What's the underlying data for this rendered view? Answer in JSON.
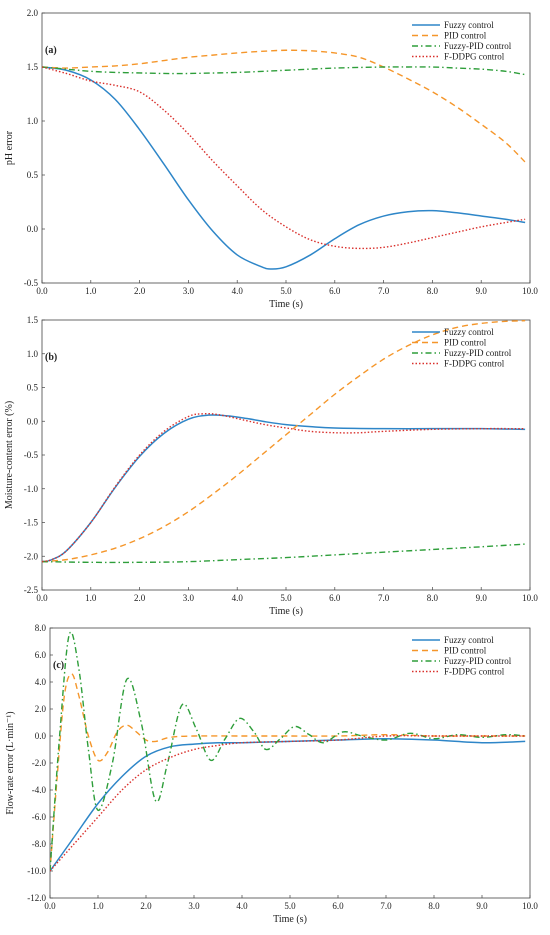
{
  "colors": {
    "fuzzy": "#2E86C8",
    "pid": "#F5962A",
    "fuzzy_pid": "#2E9E3A",
    "fddpg": "#D9302C"
  },
  "chart_data": [
    {
      "type": "line",
      "panel_label": "(a)",
      "xlabel": "Time (s)",
      "ylabel": "pH error",
      "xlim": [
        0,
        10
      ],
      "ylim": [
        -0.5,
        2.0
      ],
      "xticks": [
        "0.0",
        "1.0",
        "2.0",
        "3.0",
        "4.0",
        "5.0",
        "6.0",
        "7.0",
        "8.0",
        "9.0",
        "10.0"
      ],
      "yticks": [
        "-0.5",
        "0.0",
        "0.5",
        "1.0",
        "1.5",
        "2.0"
      ],
      "legend_position": "top-right",
      "series": [
        {
          "name": "Fuzzy control",
          "style": "solid",
          "color_key": "fuzzy",
          "x": [
            0,
            0.5,
            1,
            1.5,
            2,
            2.5,
            3,
            3.5,
            4,
            4.5,
            4.7,
            5,
            5.5,
            6,
            6.5,
            7,
            7.5,
            8,
            8.5,
            9,
            9.5,
            9.9
          ],
          "y": [
            1.5,
            1.47,
            1.38,
            1.2,
            0.92,
            0.6,
            0.27,
            -0.02,
            -0.24,
            -0.35,
            -0.37,
            -0.35,
            -0.24,
            -0.09,
            0.04,
            0.12,
            0.16,
            0.17,
            0.15,
            0.12,
            0.09,
            0.06
          ]
        },
        {
          "name": "PID control",
          "style": "dashed",
          "color_key": "pid",
          "x": [
            0,
            0.5,
            1,
            1.5,
            2,
            2.5,
            3,
            3.5,
            4,
            4.5,
            5,
            5.5,
            6,
            6.5,
            7,
            7.5,
            8,
            8.5,
            9,
            9.5,
            9.9
          ],
          "y": [
            1.5,
            1.49,
            1.5,
            1.51,
            1.53,
            1.56,
            1.59,
            1.61,
            1.63,
            1.645,
            1.655,
            1.65,
            1.63,
            1.59,
            1.5,
            1.39,
            1.27,
            1.13,
            0.97,
            0.8,
            0.62
          ]
        },
        {
          "name": "Fuzzy-PID control",
          "style": "dashdot",
          "color_key": "fuzzy_pid",
          "x": [
            0,
            0.5,
            1,
            1.5,
            2,
            2.5,
            3,
            4,
            5,
            6,
            7,
            7.5,
            8,
            8.5,
            9,
            9.5,
            9.9
          ],
          "y": [
            1.5,
            1.48,
            1.46,
            1.45,
            1.445,
            1.44,
            1.44,
            1.45,
            1.47,
            1.49,
            1.5,
            1.5,
            1.5,
            1.49,
            1.48,
            1.46,
            1.43
          ]
        },
        {
          "name": "F-DDPG control",
          "style": "dotted",
          "color_key": "fddpg",
          "x": [
            0,
            0.5,
            1,
            1.5,
            2,
            2.5,
            3,
            3.5,
            4,
            4.5,
            5,
            5.5,
            6,
            6.5,
            7,
            7.5,
            8,
            8.5,
            9,
            9.5,
            9.9
          ],
          "y": [
            1.5,
            1.44,
            1.37,
            1.33,
            1.27,
            1.1,
            0.88,
            0.63,
            0.4,
            0.18,
            0.02,
            -0.1,
            -0.16,
            -0.18,
            -0.17,
            -0.13,
            -0.08,
            -0.03,
            0.02,
            0.06,
            0.09
          ]
        }
      ]
    },
    {
      "type": "line",
      "panel_label": "(b)",
      "xlabel": "Time (s)",
      "ylabel": "Moisture-content error (%)",
      "xlim": [
        0,
        10
      ],
      "ylim": [
        -2.5,
        1.5
      ],
      "xticks": [
        "0.0",
        "1.0",
        "2.0",
        "3.0",
        "4.0",
        "5.0",
        "6.0",
        "7.0",
        "8.0",
        "9.0",
        "10.0"
      ],
      "yticks": [
        "-2.5",
        "-2.0",
        "-1.5",
        "-1.0",
        "-0.5",
        "0.0",
        "0.5",
        "1.0",
        "1.5"
      ],
      "legend_position": "top-right",
      "series": [
        {
          "name": "Fuzzy control",
          "style": "solid",
          "color_key": "fuzzy",
          "x": [
            0,
            0.2,
            0.5,
            1,
            1.5,
            2,
            2.5,
            3,
            3.4,
            3.8,
            4.2,
            4.6,
            5,
            5.5,
            6,
            7,
            8,
            9,
            9.9
          ],
          "y": [
            -2.08,
            -2.05,
            -1.92,
            -1.5,
            -0.98,
            -0.52,
            -0.18,
            0.03,
            0.09,
            0.08,
            0.04,
            -0.01,
            -0.05,
            -0.08,
            -0.1,
            -0.11,
            -0.11,
            -0.11,
            -0.12
          ]
        },
        {
          "name": "PID control",
          "style": "dashed",
          "color_key": "pid",
          "x": [
            0,
            0.5,
            1,
            1.5,
            2,
            2.5,
            3,
            3.5,
            4,
            4.5,
            5,
            5.5,
            6,
            6.5,
            7,
            7.5,
            8,
            8.5,
            9,
            9.5,
            9.9
          ],
          "y": [
            -2.08,
            -2.05,
            -1.98,
            -1.88,
            -1.74,
            -1.56,
            -1.34,
            -1.08,
            -0.8,
            -0.5,
            -0.2,
            0.1,
            0.4,
            0.67,
            0.92,
            1.12,
            1.28,
            1.39,
            1.45,
            1.48,
            1.49
          ]
        },
        {
          "name": "Fuzzy-PID control",
          "style": "dashdot",
          "color_key": "fuzzy_pid",
          "x": [
            0,
            1,
            2,
            3,
            4,
            5,
            6,
            7,
            8,
            9,
            9.9
          ],
          "y": [
            -2.08,
            -2.09,
            -2.09,
            -2.08,
            -2.05,
            -2.02,
            -1.98,
            -1.94,
            -1.9,
            -1.86,
            -1.82
          ]
        },
        {
          "name": "F-DDPG control",
          "style": "dotted",
          "color_key": "fddpg",
          "x": [
            0,
            0.2,
            0.5,
            1,
            1.5,
            2,
            2.5,
            3,
            3.3,
            3.6,
            4,
            4.5,
            5,
            5.5,
            6,
            6.5,
            7,
            8,
            9,
            9.9
          ],
          "y": [
            -2.08,
            -2.05,
            -1.92,
            -1.5,
            -0.97,
            -0.5,
            -0.15,
            0.07,
            0.11,
            0.1,
            0.04,
            -0.04,
            -0.1,
            -0.15,
            -0.17,
            -0.17,
            -0.15,
            -0.12,
            -0.11,
            -0.11
          ]
        }
      ]
    },
    {
      "type": "line",
      "panel_label": "(c)",
      "xlabel": "Time (s)",
      "ylabel": "Flow-rate error (L·min⁻¹)",
      "xlim": [
        0,
        10
      ],
      "ylim": [
        -12,
        8
      ],
      "xticks": [
        "0.0",
        "1.0",
        "2.0",
        "3.0",
        "4.0",
        "5.0",
        "6.0",
        "7.0",
        "8.0",
        "9.0",
        "10.0"
      ],
      "yticks": [
        "-12.0",
        "-10.0",
        "-8.0",
        "-6.0",
        "-4.0",
        "-2.0",
        "0.0",
        "2.0",
        "4.0",
        "6.0",
        "8.0"
      ],
      "legend_position": "top-right",
      "series": [
        {
          "name": "Fuzzy control",
          "style": "solid",
          "color_key": "fuzzy",
          "x": [
            0,
            0.5,
            1,
            1.5,
            2,
            2.5,
            3,
            3.5,
            4,
            5,
            6,
            7,
            8,
            9,
            9.9
          ],
          "y": [
            -10,
            -7.5,
            -5,
            -3,
            -1.5,
            -0.8,
            -0.6,
            -0.5,
            -0.5,
            -0.4,
            -0.3,
            -0.2,
            -0.3,
            -0.5,
            -0.4
          ]
        },
        {
          "name": "PID control",
          "style": "dashed",
          "color_key": "pid",
          "x": [
            0,
            0.15,
            0.3,
            0.45,
            0.6,
            0.8,
            1,
            1.2,
            1.4,
            1.6,
            1.8,
            2,
            2.2,
            2.5,
            3,
            4,
            5,
            6,
            7,
            8,
            9,
            9.9
          ],
          "y": [
            -10,
            -3,
            3,
            4.6,
            3,
            0,
            -1.8,
            -1.2,
            0.3,
            0.8,
            0.3,
            -0.3,
            -0.4,
            -0.1,
            0,
            0,
            0,
            0,
            0.1,
            0,
            0,
            0
          ]
        },
        {
          "name": "Fuzzy-PID control",
          "style": "dashdot",
          "color_key": "fuzzy_pid",
          "x": [
            0,
            0.2,
            0.4,
            0.6,
            0.8,
            1,
            1.3,
            1.6,
            1.9,
            2.2,
            2.45,
            2.75,
            3.05,
            3.35,
            3.65,
            3.95,
            4.25,
            4.5,
            4.8,
            5.1,
            5.4,
            5.7,
            6.1,
            6.5,
            7,
            7.5,
            8,
            8.5,
            9,
            9.5,
            9.9
          ],
          "y": [
            -10,
            0,
            7.5,
            5,
            -1,
            -5.5,
            -2,
            4.2,
            1,
            -4.8,
            -2,
            2.3,
            0.5,
            -1.8,
            -0.2,
            1.3,
            0.3,
            -1,
            -0.2,
            0.7,
            0.1,
            -0.5,
            0.3,
            0,
            -0.3,
            0.2,
            -0.2,
            0.1,
            -0.1,
            0.1,
            0
          ]
        },
        {
          "name": "F-DDPG control",
          "style": "dotted",
          "color_key": "fddpg",
          "x": [
            0,
            0.5,
            1,
            1.5,
            2,
            2.5,
            3,
            3.5,
            4,
            5,
            6,
            7,
            8,
            9,
            9.9
          ],
          "y": [
            -10,
            -8,
            -6,
            -4,
            -2.5,
            -1.6,
            -1,
            -0.7,
            -0.5,
            -0.4,
            -0.3,
            0,
            0,
            0,
            0
          ]
        }
      ]
    }
  ]
}
